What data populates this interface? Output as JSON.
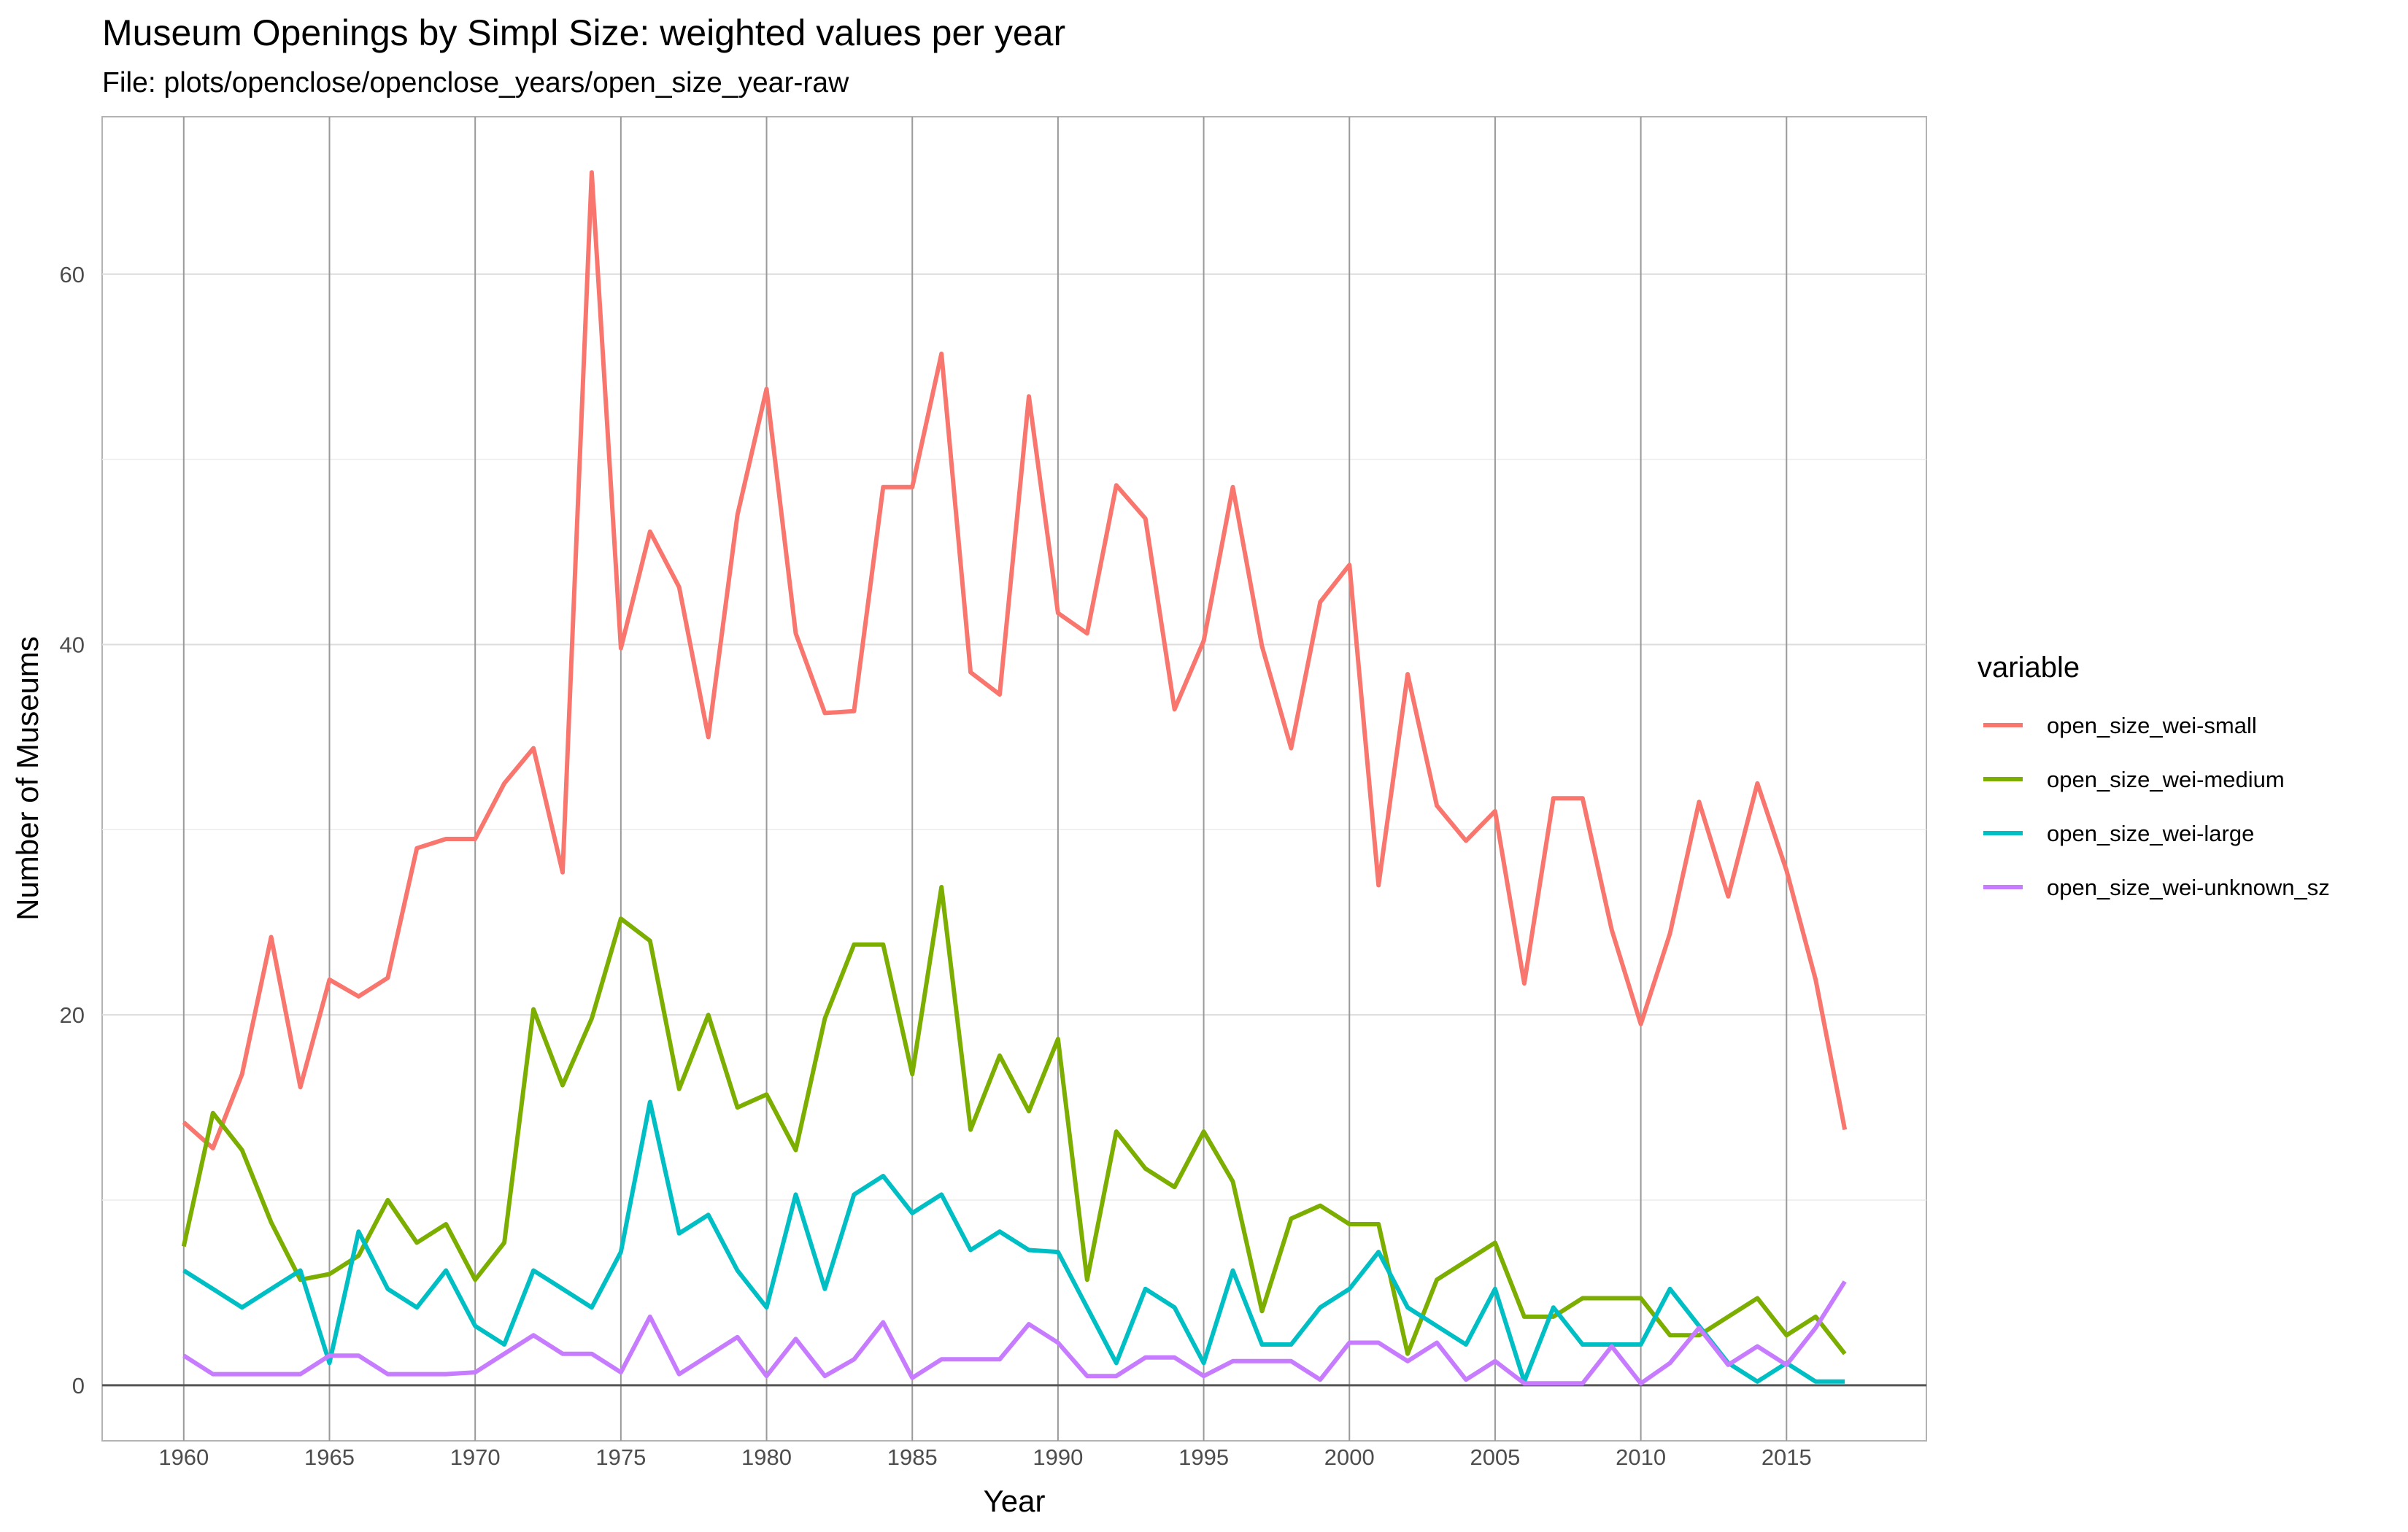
{
  "chart_data": {
    "type": "line",
    "title": "Museum Openings by Simpl Size: weighted values per year",
    "subtitle": "File: plots/openclose/openclose_years/open_size_year-raw",
    "xlabel": "Year",
    "ylabel": "Number of Museums",
    "xlim": [
      1957.2,
      2019.8
    ],
    "ylim": [
      -3,
      68.5
    ],
    "x_ticks": [
      1960,
      1965,
      1970,
      1975,
      1980,
      1985,
      1990,
      1995,
      2000,
      2005,
      2010,
      2015
    ],
    "x_tick_labels": [
      "1960",
      "1965",
      "1970",
      "1975",
      "1980",
      "1985",
      "1990",
      "1995",
      "2000",
      "2005",
      "2010",
      "2015"
    ],
    "y_ticks": [
      0,
      20,
      40,
      60
    ],
    "y_tick_labels": [
      "0",
      "20",
      "40",
      "60"
    ],
    "y_minor_ticks": [
      10,
      30,
      50
    ],
    "grid": true,
    "legend_title": "variable",
    "legend_position": "right",
    "x": [
      1960,
      1961,
      1962,
      1963,
      1964,
      1965,
      1966,
      1967,
      1968,
      1969,
      1970,
      1971,
      1972,
      1973,
      1974,
      1975,
      1976,
      1977,
      1978,
      1979,
      1980,
      1981,
      1982,
      1983,
      1984,
      1985,
      1986,
      1987,
      1988,
      1989,
      1990,
      1991,
      1992,
      1993,
      1994,
      1995,
      1996,
      1997,
      1998,
      1999,
      2000,
      2001,
      2002,
      2003,
      2004,
      2005,
      2006,
      2007,
      2008,
      2009,
      2010,
      2011,
      2012,
      2013,
      2014,
      2015,
      2016,
      2017
    ],
    "series": [
      {
        "name": "open_size_wei-small",
        "color": "#F8766D",
        "values": [
          14.2,
          12.8,
          16.8,
          24.2,
          16.1,
          21.9,
          21.0,
          22.0,
          29.0,
          29.5,
          29.5,
          32.5,
          34.4,
          27.7,
          65.5,
          39.8,
          46.1,
          43.1,
          35.0,
          47.0,
          53.8,
          40.6,
          36.3,
          36.4,
          48.5,
          48.5,
          55.7,
          38.5,
          37.3,
          53.4,
          41.7,
          40.6,
          48.6,
          46.8,
          36.5,
          40.2,
          48.5,
          39.9,
          34.4,
          42.3,
          44.3,
          27.0,
          38.4,
          31.3,
          29.4,
          31.0,
          21.7,
          31.7,
          31.7,
          24.6,
          19.5,
          24.4,
          31.5,
          26.4,
          32.5,
          27.8,
          21.9,
          13.8
        ]
      },
      {
        "name": "open_size_wei-medium",
        "color": "#7CAE00",
        "values": [
          7.5,
          14.7,
          12.7,
          8.8,
          5.7,
          6.0,
          7.0,
          10.0,
          7.7,
          8.7,
          5.7,
          7.7,
          20.3,
          16.2,
          19.8,
          25.2,
          24.0,
          16.0,
          20.0,
          15.0,
          15.7,
          12.7,
          19.8,
          23.8,
          23.8,
          16.8,
          26.9,
          13.8,
          17.8,
          14.8,
          18.7,
          5.7,
          13.7,
          11.7,
          10.7,
          13.7,
          11.0,
          4.0,
          9.0,
          9.7,
          8.7,
          8.7,
          1.7,
          5.7,
          6.7,
          7.7,
          3.7,
          3.7,
          4.7,
          4.7,
          4.7,
          2.7,
          2.7,
          3.7,
          4.7,
          2.7,
          3.7,
          1.7
        ]
      },
      {
        "name": "open_size_wei-large",
        "color": "#00BFC4",
        "values": [
          6.2,
          5.2,
          4.2,
          5.2,
          6.2,
          1.2,
          8.3,
          5.2,
          4.2,
          6.2,
          3.2,
          2.2,
          6.2,
          5.2,
          4.2,
          7.2,
          15.3,
          8.2,
          9.2,
          6.2,
          4.2,
          10.3,
          5.2,
          10.3,
          11.3,
          9.3,
          10.3,
          7.3,
          8.3,
          7.3,
          7.2,
          4.2,
          1.2,
          5.2,
          4.2,
          1.2,
          6.2,
          2.2,
          2.2,
          4.2,
          5.2,
          7.2,
          4.2,
          3.2,
          2.2,
          5.2,
          0.2,
          4.2,
          2.2,
          2.2,
          2.2,
          5.2,
          3.2,
          1.2,
          0.2,
          1.2,
          0.2,
          0.2
        ]
      },
      {
        "name": "open_size_wei-unknown_sz",
        "color": "#C77CFF",
        "values": [
          1.6,
          0.6,
          0.6,
          0.6,
          0.6,
          1.6,
          1.6,
          0.6,
          0.6,
          0.6,
          0.7,
          1.7,
          2.7,
          1.7,
          1.7,
          0.7,
          3.7,
          0.6,
          1.6,
          2.6,
          0.5,
          2.5,
          0.5,
          1.4,
          3.4,
          0.4,
          1.4,
          1.4,
          1.4,
          3.3,
          2.3,
          0.5,
          0.5,
          1.5,
          1.5,
          0.5,
          1.3,
          1.3,
          1.3,
          0.3,
          2.3,
          2.3,
          1.3,
          2.3,
          0.3,
          1.3,
          0.1,
          0.1,
          0.1,
          2.1,
          0.1,
          1.2,
          3.1,
          1.1,
          2.1,
          1.1,
          3.1,
          5.6
        ]
      }
    ]
  }
}
